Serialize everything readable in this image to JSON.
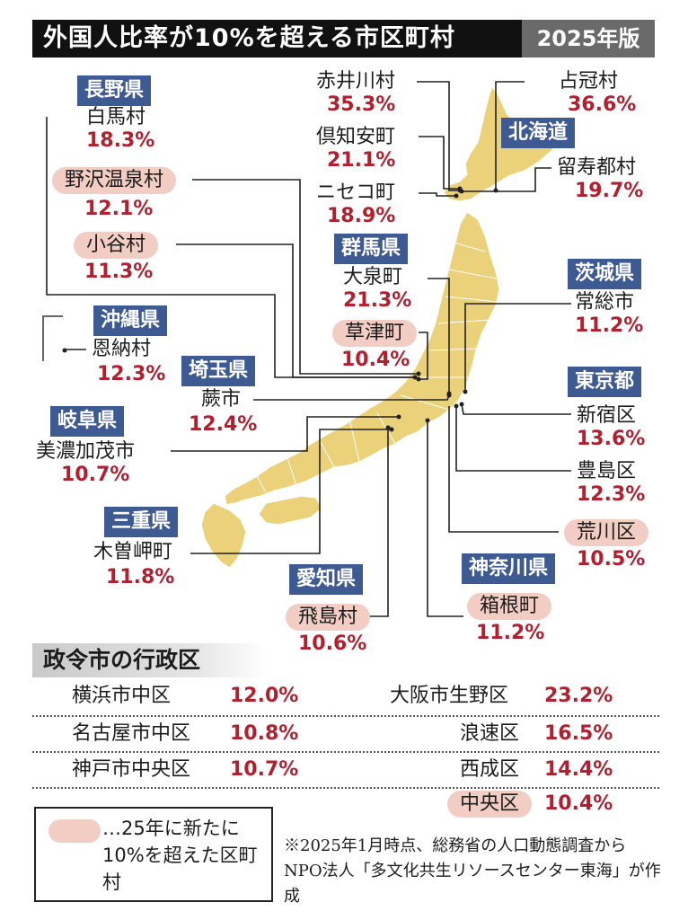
{
  "title": "外国人比率が10%を超える市区町村",
  "edition": "2025年版",
  "colors": {
    "title_bg": "#111111",
    "edition_bg": "#6a6a6a",
    "prefecture_label_bg": "#3e5a92",
    "percentage_text": "#b21f2e",
    "new_highlight": "#f2cdc3",
    "map_fill": "#ebd27a",
    "map_border": "#ffffff"
  },
  "map": {
    "prefectures": {
      "hokkaido": "北海道",
      "nagano": "長野県",
      "gunma": "群馬県",
      "okinawa": "沖縄県",
      "ibaraki": "茨城県",
      "saitama": "埼玉県",
      "tokyo": "東京都",
      "gifu": "岐阜県",
      "mie": "三重県",
      "aichi": "愛知県",
      "kanagawa": "神奈川県"
    },
    "municipalities": {
      "akaigawa": {
        "name": "赤井川村",
        "value": "35.3%",
        "prefecture": "北海道",
        "is_new": false
      },
      "shimukappu": {
        "name": "占冠村",
        "value": "36.6%",
        "prefecture": "北海道",
        "is_new": false
      },
      "kutchan": {
        "name": "倶知安町",
        "value": "21.1%",
        "prefecture": "北海道",
        "is_new": false
      },
      "rusutsu": {
        "name": "留寿都村",
        "value": "19.7%",
        "prefecture": "北海道",
        "is_new": false
      },
      "niseko": {
        "name": "ニセコ町",
        "value": "18.9%",
        "prefecture": "北海道",
        "is_new": false
      },
      "hakuba": {
        "name": "白馬村",
        "value": "18.3%",
        "prefecture": "長野県",
        "is_new": false
      },
      "nozawaonsen": {
        "name": "野沢温泉村",
        "value": "12.1%",
        "prefecture": "長野県",
        "is_new": true
      },
      "otari": {
        "name": "小谷村",
        "value": "11.3%",
        "prefecture": "長野県",
        "is_new": true
      },
      "oizumi": {
        "name": "大泉町",
        "value": "21.3%",
        "prefecture": "群馬県",
        "is_new": false
      },
      "kusatsu": {
        "name": "草津町",
        "value": "10.4%",
        "prefecture": "群馬県",
        "is_new": true
      },
      "onna": {
        "name": "恩納村",
        "value": "12.3%",
        "prefecture": "沖縄県",
        "is_new": false
      },
      "joso": {
        "name": "常総市",
        "value": "11.2%",
        "prefecture": "茨城県",
        "is_new": false
      },
      "warabi": {
        "name": "蕨市",
        "value": "12.4%",
        "prefecture": "埼玉県",
        "is_new": false
      },
      "shinjuku": {
        "name": "新宿区",
        "value": "13.6%",
        "prefecture": "東京都",
        "is_new": false
      },
      "minokamo": {
        "name": "美濃加茂市",
        "value": "10.7%",
        "prefecture": "岐阜県",
        "is_new": false
      },
      "toshima": {
        "name": "豊島区",
        "value": "12.3%",
        "prefecture": "東京都",
        "is_new": false
      },
      "arakawa": {
        "name": "荒川区",
        "value": "10.5%",
        "prefecture": "東京都",
        "is_new": true
      },
      "kisosaki": {
        "name": "木曽岬町",
        "value": "11.8%",
        "prefecture": "三重県",
        "is_new": false
      },
      "tobishima": {
        "name": "飛島村",
        "value": "10.6%",
        "prefecture": "愛知県",
        "is_new": true
      },
      "hakone": {
        "name": "箱根町",
        "value": "11.2%",
        "prefecture": "神奈川県",
        "is_new": true
      }
    }
  },
  "designated_cities": {
    "heading": "政令市の行政区",
    "rows": [
      {
        "name": "横浜市中区",
        "value": "12.0%",
        "is_new": false
      },
      {
        "name": "名古屋市中区",
        "value": "10.8%",
        "is_new": false
      },
      {
        "name": "神戸市中央区",
        "value": "10.7%",
        "is_new": false
      },
      {
        "name": "大阪市生野区",
        "value": "23.2%",
        "is_new": false
      },
      {
        "name": "浪速区",
        "value": "16.5%",
        "is_new": false
      },
      {
        "name": "西成区",
        "value": "14.4%",
        "is_new": false
      },
      {
        "name": "中央区",
        "value": "10.4%",
        "is_new": true
      }
    ]
  },
  "legend": {
    "text": "…25年に新たに10%を超えた区町村"
  },
  "note": "※2025年1月時点、総務省の人口動態調査からNPO法人「多文化共生リソースセンター東海」が作成"
}
